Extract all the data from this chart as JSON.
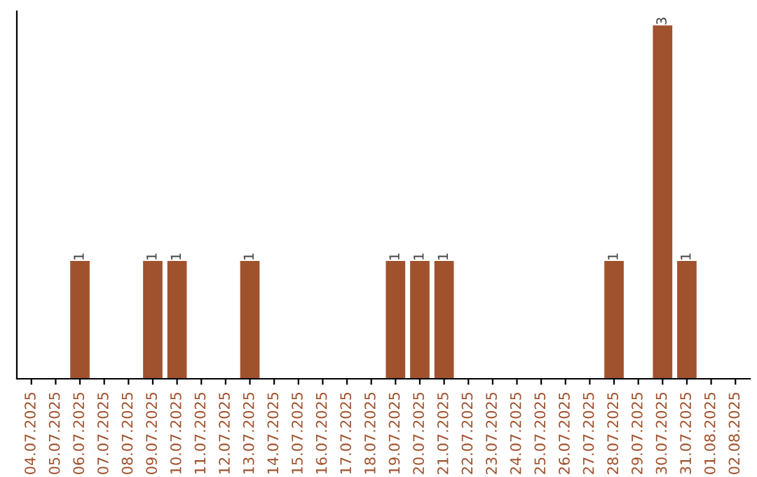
{
  "chart_data": {
    "type": "bar",
    "categories": [
      "04.07.2025",
      "05.07.2025",
      "06.07.2025",
      "07.07.2025",
      "08.07.2025",
      "09.07.2025",
      "10.07.2025",
      "11.07.2025",
      "12.07.2025",
      "13.07.2025",
      "14.07.2025",
      "15.07.2025",
      "16.07.2025",
      "17.07.2025",
      "18.07.2025",
      "19.07.2025",
      "20.07.2025",
      "21.07.2025",
      "22.07.2025",
      "23.07.2025",
      "24.07.2025",
      "25.07.2025",
      "26.07.2025",
      "27.07.2025",
      "28.07.2025",
      "29.07.2025",
      "30.07.2025",
      "31.07.2025",
      "01.08.2025",
      "02.08.2025"
    ],
    "values": [
      0,
      0,
      1,
      0,
      0,
      1,
      1,
      0,
      0,
      1,
      0,
      0,
      0,
      0,
      0,
      1,
      1,
      1,
      0,
      0,
      0,
      0,
      0,
      0,
      1,
      0,
      3,
      1,
      0,
      0
    ],
    "value_labels": [
      null,
      null,
      "1",
      null,
      null,
      "1",
      "1",
      null,
      null,
      "1",
      null,
      null,
      null,
      null,
      null,
      "1",
      "1",
      "1",
      null,
      null,
      null,
      null,
      null,
      null,
      "1",
      null,
      "3",
      "1",
      null,
      null
    ],
    "color": "#a0522d",
    "tick_labels": "x",
    "grid": false
  }
}
